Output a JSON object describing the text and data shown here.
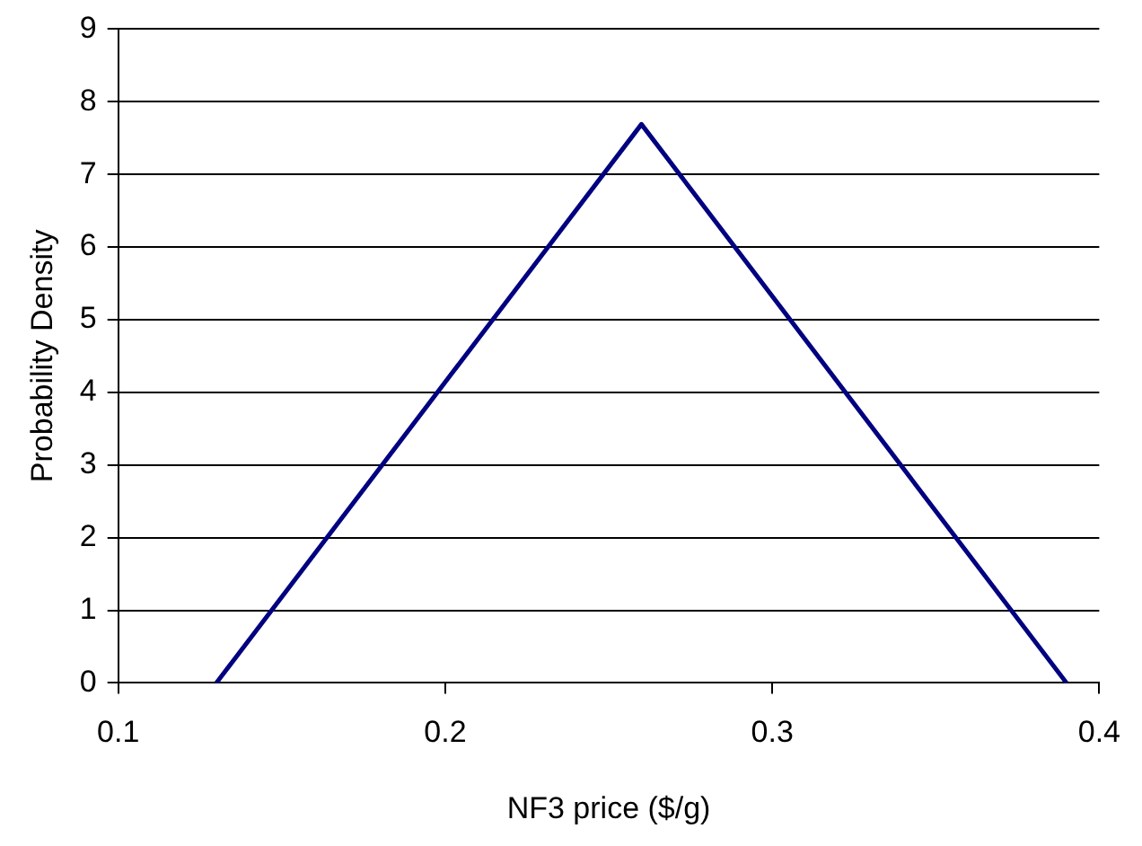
{
  "chart_data": {
    "type": "line",
    "xlabel": "NF3 price ($/g)",
    "ylabel": "Probability Density",
    "x": [
      0.13,
      0.26,
      0.39
    ],
    "series": [
      {
        "color": "#000080",
        "values": [
          0,
          7.69,
          0
        ]
      }
    ],
    "xlim": [
      0.1,
      0.4
    ],
    "xticks": [
      0.1,
      0.2,
      0.3,
      0.4
    ],
    "ylim": [
      0,
      9
    ],
    "yticks": [
      0,
      1,
      2,
      3,
      4,
      5,
      6,
      7,
      8,
      9
    ],
    "grid": "y",
    "legend": false,
    "marker": "none",
    "line_style": "solid"
  }
}
